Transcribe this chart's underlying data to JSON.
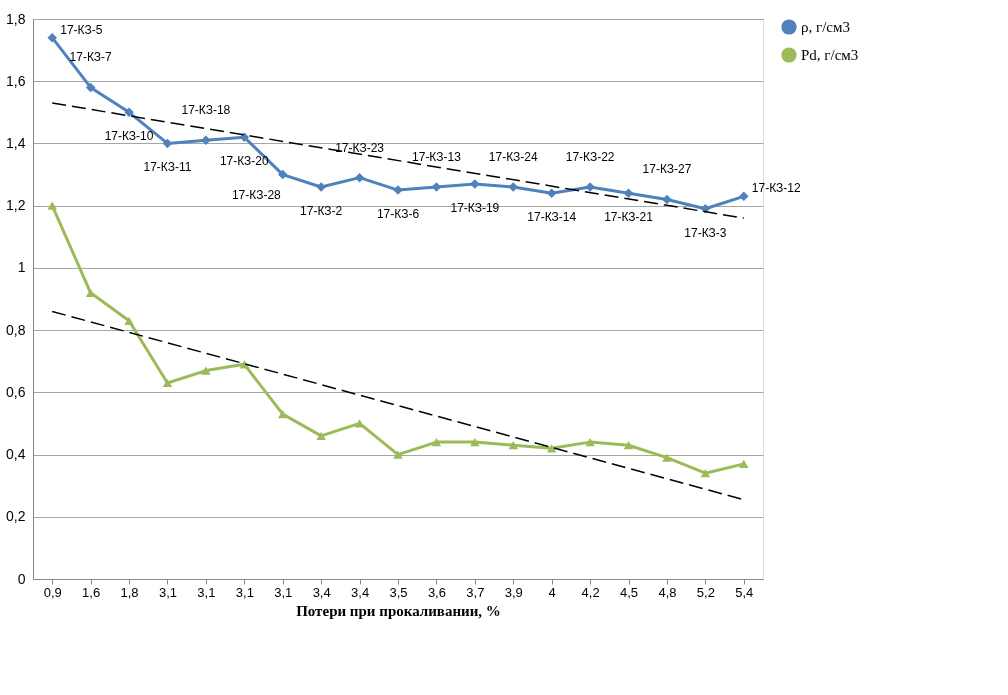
{
  "chart_data": {
    "type": "line",
    "xlabel": "Потери при прокаливании, %",
    "categories": [
      "0,9",
      "1,6",
      "1,8",
      "3,1",
      "3,1",
      "3,1",
      "3,1",
      "3,4",
      "3,4",
      "3,5",
      "3,6",
      "3,7",
      "3,9",
      "4",
      "4,2",
      "4,5",
      "4,8",
      "5,2",
      "5,4"
    ],
    "series": [
      {
        "name": "ρ, г/см3",
        "color": "#4f81bd",
        "marker": "diamond",
        "values": [
          1.74,
          1.58,
          1.5,
          1.4,
          1.41,
          1.42,
          1.3,
          1.26,
          1.29,
          1.25,
          1.26,
          1.27,
          1.26,
          1.24,
          1.26,
          1.24,
          1.22,
          1.19,
          1.23
        ]
      },
      {
        "name": "Pd, г/см3",
        "color": "#9bbb59",
        "marker": "triangle",
        "values": [
          1.2,
          0.92,
          0.83,
          0.63,
          0.67,
          0.69,
          0.53,
          0.46,
          0.5,
          0.4,
          0.44,
          0.44,
          0.43,
          0.42,
          0.44,
          0.43,
          0.39,
          0.34,
          0.37
        ]
      },
      {
        "color": "#000000",
        "marker": "none",
        "line_style": "dashed",
        "values": [
          1.53,
          null,
          null,
          null,
          null,
          null,
          null,
          null,
          null,
          null,
          null,
          null,
          null,
          null,
          null,
          null,
          null,
          null,
          1.16
        ]
      },
      {
        "color": "#000000",
        "marker": "none",
        "line_style": "dashed",
        "values": [
          0.86,
          null,
          null,
          null,
          null,
          null,
          null,
          null,
          null,
          null,
          null,
          null,
          null,
          null,
          null,
          null,
          null,
          null,
          0.255
        ]
      }
    ],
    "ylim": [
      0,
      1.8
    ],
    "yticks": [
      0,
      {
        "value": 0.2,
        "label": "0,2"
      },
      {
        "value": 0.4,
        "label": "0,4"
      },
      {
        "value": 0.6,
        "label": "0,6"
      },
      {
        "value": 0.8,
        "label": "0,8"
      },
      1,
      {
        "value": 1.2,
        "label": "1,2"
      },
      {
        "value": 1.4,
        "label": "1,4"
      },
      {
        "value": 1.6,
        "label": "1,6"
      },
      {
        "value": 1.8,
        "label": "1,8"
      }
    ],
    "grid": "y",
    "legend": "right",
    "annotations": [
      "17-КЗ-5",
      "17-КЗ-7",
      "17-КЗ-10",
      "17-КЗ-11",
      "17-КЗ-18",
      "17-КЗ-20",
      "17-КЗ-28",
      "17-КЗ-2",
      "17-КЗ-23",
      "17-КЗ-6",
      "17-КЗ-13",
      "17-КЗ-19",
      "17-КЗ-24",
      "17-КЗ-14",
      "17-КЗ-22",
      "17-КЗ-21",
      "17-КЗ-27",
      "17-КЗ-3",
      "17-КЗ-12"
    ]
  }
}
